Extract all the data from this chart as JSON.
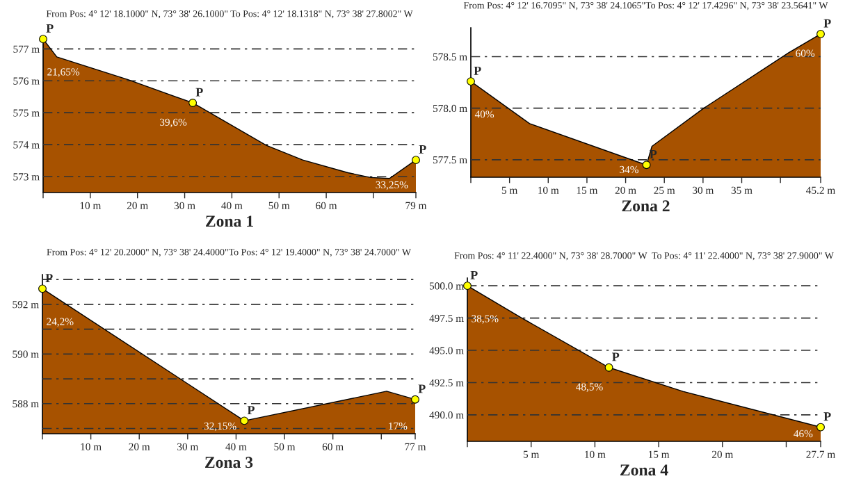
{
  "chart_data": [
    {
      "type": "area",
      "title": "From Pos: 4° 12' 18.1000\" N, 73° 38' 26.1000\" To Pos: 4° 12' 18.1318\" N, 73° 38' 27.8002\" W",
      "xlabel": "Zona 1",
      "grid": "y",
      "series": [
        {
          "color": "#a75200",
          "x": [
            0,
            2.9,
            17.9,
            31.7,
            47.3,
            55,
            64.6,
            69.4,
            73.4,
            79
          ],
          "values": [
            577.31,
            576.75,
            576.04,
            575.31,
            573.98,
            573.52,
            573.12,
            572.97,
            572.94,
            573.52
          ]
        },
        {
          "type": "scatter",
          "color": "#ffff00",
          "marker": "circle",
          "x": [
            0,
            31.7,
            79
          ],
          "values": [
            577.31,
            575.31,
            573.52
          ],
          "value_labels": [
            "P",
            "P",
            "P"
          ]
        }
      ],
      "annotations": [
        "21,65%",
        "39,6%",
        "33,25%"
      ],
      "xlim": [
        0,
        79
      ],
      "ylim": [
        572.5,
        577.4
      ],
      "xticks": [
        {
          "value": 0,
          "label": null
        },
        {
          "value": 10,
          "label": "10 m"
        },
        {
          "value": 20,
          "label": "20 m"
        },
        {
          "value": 30,
          "label": "30 m"
        },
        {
          "value": 40,
          "label": "40 m"
        },
        {
          "value": 50,
          "label": "50 m"
        },
        {
          "value": 60,
          "label": "60 m"
        },
        {
          "value": 70,
          "label": null
        },
        {
          "value": 79,
          "label": "79 m"
        }
      ],
      "yticks": [
        {
          "value": 573,
          "label": "573 m"
        },
        {
          "value": 574,
          "label": "574 m"
        },
        {
          "value": 575,
          "label": "575 m"
        },
        {
          "value": 576,
          "label": "576 m"
        },
        {
          "value": 577,
          "label": "577 m"
        }
      ]
    },
    {
      "type": "area",
      "title": "From Pos: 4° 12' 16.7095\" N, 73° 38' 24.1065\"To Pos: 4° 12' 17.4296\" N, 73° 38' 23.5641\" W",
      "xlabel": "Zona 2",
      "grid": "y",
      "series": [
        {
          "color": "#a75200",
          "x": [
            0,
            7.6,
            21.5,
            22.7,
            23.4,
            30.1,
            41.1,
            45.2
          ],
          "values": [
            578.26,
            577.85,
            577.48,
            577.45,
            577.63,
            578.0,
            578.54,
            578.72
          ]
        },
        {
          "type": "scatter",
          "color": "#ffff00",
          "marker": "circle",
          "x": [
            0,
            22.7,
            45.2
          ],
          "values": [
            578.26,
            577.45,
            578.72
          ],
          "value_labels": [
            "P",
            "P",
            "P"
          ]
        }
      ],
      "annotations": [
        "40%",
        "34%",
        "60%"
      ],
      "xlim": [
        0,
        45.2
      ],
      "ylim": [
        577.33,
        578.78
      ],
      "xticks": [
        {
          "value": 0,
          "label": null
        },
        {
          "value": 5,
          "label": "5 m"
        },
        {
          "value": 10,
          "label": "10 m"
        },
        {
          "value": 15,
          "label": "15 m"
        },
        {
          "value": 20,
          "label": "20 m"
        },
        {
          "value": 25,
          "label": "25 m"
        },
        {
          "value": 30,
          "label": "30 m"
        },
        {
          "value": 35,
          "label": "35 m"
        },
        {
          "value": 40,
          "label": null
        },
        {
          "value": 45.2,
          "label": "45.2 m"
        }
      ],
      "yticks": [
        {
          "value": 577.5,
          "label": "577.5 m"
        },
        {
          "value": 578.0,
          "label": "578.0 m"
        },
        {
          "value": 578.5,
          "label": "578.5 m"
        }
      ]
    },
    {
      "type": "area",
      "title": "From Pos: 4° 12' 20.2000\" N, 73° 38' 24.4000\"To Pos: 4° 12' 19.4000\" N, 73° 38' 24.7000\" W",
      "xlabel": "Zona 3",
      "grid": "y",
      "series": [
        {
          "color": "#a75200",
          "x": [
            0,
            41.7,
            71.1,
            77
          ],
          "values": [
            592.63,
            587.31,
            588.5,
            588.17
          ]
        },
        {
          "type": "scatter",
          "color": "#ffff00",
          "marker": "circle",
          "x": [
            0,
            41.7,
            77
          ],
          "values": [
            592.63,
            587.31,
            588.17
          ],
          "value_labels": [
            "P",
            "P",
            "P"
          ]
        }
      ],
      "annotations": [
        "24,2%",
        "32,15%",
        "17%"
      ],
      "xlim": [
        0,
        77
      ],
      "ylim": [
        586.79,
        593.2
      ],
      "xticks": [
        {
          "value": 0,
          "label": null
        },
        {
          "value": 10,
          "label": "10 m"
        },
        {
          "value": 20,
          "label": "20 m"
        },
        {
          "value": 30,
          "label": "30 m"
        },
        {
          "value": 40,
          "label": "40 m"
        },
        {
          "value": 50,
          "label": "50 m"
        },
        {
          "value": 60,
          "label": "60 m"
        },
        {
          "value": 70,
          "label": null
        },
        {
          "value": 77,
          "label": "77 m"
        }
      ],
      "yticks": [
        {
          "value": 587,
          "label": null
        },
        {
          "value": 588,
          "label": "588 m"
        },
        {
          "value": 589,
          "label": null
        },
        {
          "value": 590,
          "label": "590 m"
        },
        {
          "value": 591,
          "label": null
        },
        {
          "value": 592,
          "label": "592 m"
        },
        {
          "value": 593,
          "label": null
        }
      ]
    },
    {
      "type": "area",
      "title": "From Pos: 4° 11' 22.4000\" N, 73° 38' 28.7000\" W  To Pos: 4° 11' 22.4000\" N, 73° 38' 27.9000\" W",
      "xlabel": "Zona 4",
      "grid": "y",
      "series": [
        {
          "color": "#a75200",
          "x": [
            0,
            4.2,
            11.1,
            16.9,
            27.7
          ],
          "values": [
            500.0,
            497.54,
            493.67,
            491.82,
            489.05
          ]
        },
        {
          "type": "scatter",
          "color": "#ffff00",
          "marker": "circle",
          "x": [
            0,
            11.1,
            27.7
          ],
          "values": [
            500.0,
            493.67,
            489.05
          ],
          "value_labels": [
            "P",
            "P",
            "P"
          ]
        }
      ],
      "annotations": [
        "38,5%",
        "48,5%",
        "46%"
      ],
      "xlim": [
        0,
        27.7
      ],
      "ylim": [
        487.95,
        500.6
      ],
      "xticks": [
        {
          "value": 0,
          "label": null
        },
        {
          "value": 5,
          "label": "5 m"
        },
        {
          "value": 10,
          "label": "10 m"
        },
        {
          "value": 15,
          "label": "15 m"
        },
        {
          "value": 20,
          "label": "20 m"
        },
        {
          "value": 25,
          "label": null
        },
        {
          "value": 27.7,
          "label": "27.7 m"
        }
      ],
      "yticks": [
        {
          "value": 490.0,
          "label": "490.0 m"
        },
        {
          "value": 492.5,
          "label": "492.5 m"
        },
        {
          "value": 495.0,
          "label": "495.0 m"
        },
        {
          "value": 497.5,
          "label": "497.5 m"
        },
        {
          "value": 500.0,
          "label": "500.0 m"
        }
      ]
    }
  ]
}
